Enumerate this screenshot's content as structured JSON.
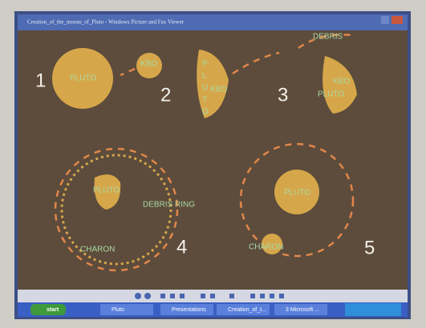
{
  "window": {
    "title": "Creation_of_the_moons_of_Pluto - Windows Picture and Fax Viewer"
  },
  "panels": [
    {
      "number": "1",
      "pluto": "PLUTO",
      "kbo": "KBO"
    },
    {
      "number": "2",
      "letters": [
        "P",
        "L",
        "U",
        "T",
        "O"
      ],
      "kbo": "KBO"
    },
    {
      "number": "3",
      "debris": "DEBRIS",
      "kbo": "KBO",
      "pluto": "PLUTO"
    },
    {
      "number": "4",
      "pluto": "PLUTO",
      "ring": "DEBRIS RING",
      "charon": "CHARON"
    },
    {
      "number": "5",
      "pluto": "PLUTO",
      "charon": "CHARON"
    }
  ],
  "taskbar": {
    "start": "start",
    "items": [
      "Pluto",
      "Presentations",
      "Creation_of_t...",
      "3 Microsoft ..."
    ]
  }
}
